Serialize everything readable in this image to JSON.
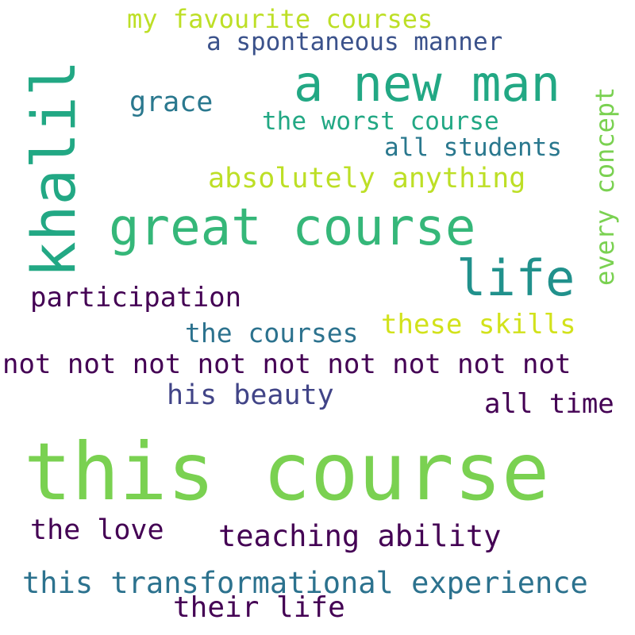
{
  "words": [
    {
      "text": "this course",
      "color": "#7ad151"
    },
    {
      "text": "khalil",
      "color": "#22a884"
    },
    {
      "text": "great course",
      "color": "#35b779"
    },
    {
      "text": "a new man",
      "color": "#22a884"
    },
    {
      "text": "life",
      "color": "#21918c"
    },
    {
      "text": "this transformational experience",
      "color": "#2c728e"
    },
    {
      "text": "not not not not not not not not not",
      "color": "#440154"
    },
    {
      "text": "teaching ability",
      "color": "#440154"
    },
    {
      "text": "my favourite courses",
      "color": "#bddf26"
    },
    {
      "text": "a spontaneous manner",
      "color": "#3b528b"
    },
    {
      "text": "grace",
      "color": "#2a788e"
    },
    {
      "text": "the worst course",
      "color": "#22a884"
    },
    {
      "text": "all students",
      "color": "#2a788e"
    },
    {
      "text": "every concept",
      "color": "#7ad151"
    },
    {
      "text": "absolutely anything",
      "color": "#bddf26"
    },
    {
      "text": "participation",
      "color": "#440154"
    },
    {
      "text": "these skills",
      "color": "#d2e21b"
    },
    {
      "text": "the courses",
      "color": "#2c728e"
    },
    {
      "text": "his beauty",
      "color": "#414487"
    },
    {
      "text": "all time",
      "color": "#440154"
    },
    {
      "text": "the love",
      "color": "#440154"
    },
    {
      "text": "their life",
      "color": "#440154"
    }
  ]
}
